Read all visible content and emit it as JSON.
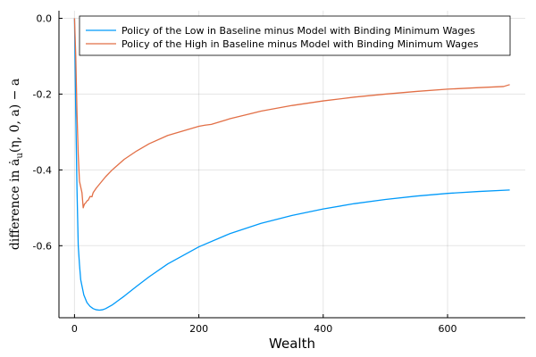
{
  "chart_data": {
    "type": "line",
    "xlabel": "Wealth",
    "ylabel": "difference in ȧ",
    "ylabel_sub": "u",
    "ylabel_tail": "(η, 0, a) − a",
    "xlim": [
      -25,
      725
    ],
    "ylim": [
      -0.79,
      0.02
    ],
    "xticks": [
      0,
      200,
      400,
      600
    ],
    "yticks": [
      0.0,
      -0.2,
      -0.4,
      -0.6
    ],
    "xtick_labels": [
      "0",
      "200",
      "400",
      "600"
    ],
    "ytick_labels": [
      "0.0",
      "-0.2",
      "-0.4",
      "-0.6"
    ],
    "grid": true,
    "legend_position": "top-right",
    "series": [
      {
        "name": "Policy of the Low in Baseline minus Model with Binding Minimum Wages",
        "color": "#009AFA",
        "x": [
          0,
          2,
          4,
          6,
          8,
          10,
          15,
          20,
          25,
          30,
          35,
          40,
          45,
          50,
          60,
          70,
          80,
          100,
          120,
          150,
          200,
          250,
          300,
          350,
          400,
          450,
          500,
          550,
          600,
          650,
          700
        ],
        "y": [
          0.0,
          -0.25,
          -0.45,
          -0.6,
          -0.65,
          -0.69,
          -0.73,
          -0.75,
          -0.76,
          -0.766,
          -0.769,
          -0.77,
          -0.769,
          -0.766,
          -0.757,
          -0.745,
          -0.733,
          -0.707,
          -0.682,
          -0.648,
          -0.603,
          -0.568,
          -0.541,
          -0.52,
          -0.503,
          -0.489,
          -0.478,
          -0.469,
          -0.462,
          -0.457,
          -0.453
        ]
      },
      {
        "name": "Policy of the High in Baseline minus Model with Binding Minimum Wages",
        "color": "#E26F46",
        "x": [
          0,
          2,
          4,
          6,
          8,
          10,
          12,
          14,
          16,
          18,
          20,
          22,
          25,
          28,
          30,
          35,
          40,
          50,
          60,
          80,
          100,
          120,
          150,
          200,
          210,
          220,
          250,
          300,
          350,
          400,
          450,
          500,
          550,
          600,
          650,
          690,
          700
        ],
        "y": [
          0.0,
          -0.1,
          -0.25,
          -0.36,
          -0.43,
          -0.445,
          -0.46,
          -0.5,
          -0.49,
          -0.487,
          -0.482,
          -0.48,
          -0.47,
          -0.471,
          -0.46,
          -0.448,
          -0.438,
          -0.418,
          -0.401,
          -0.372,
          -0.35,
          -0.331,
          -0.309,
          -0.285,
          -0.282,
          -0.28,
          -0.265,
          -0.245,
          -0.23,
          -0.218,
          -0.208,
          -0.2,
          -0.193,
          -0.187,
          -0.183,
          -0.18,
          -0.175
        ]
      }
    ]
  }
}
